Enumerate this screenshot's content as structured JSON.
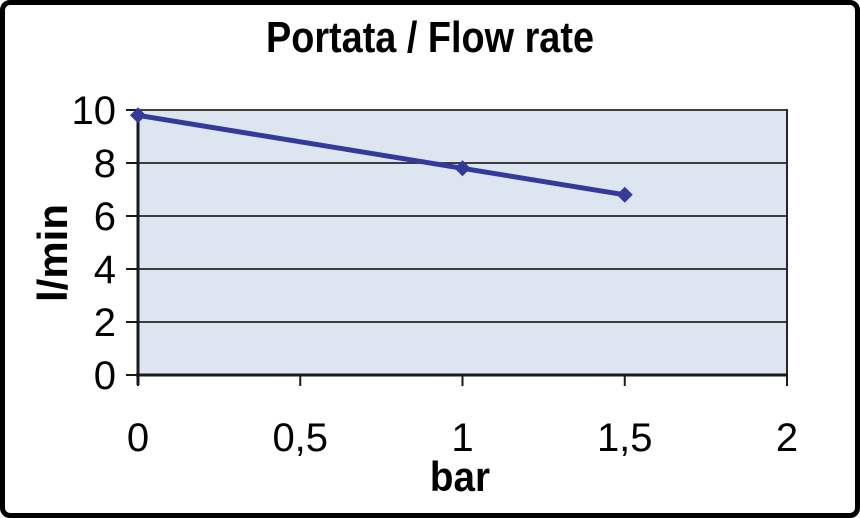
{
  "chart_data": {
    "type": "line",
    "title": "Portata / Flow rate",
    "xlabel": "bar",
    "ylabel": "l/min",
    "x": [
      0,
      1,
      1.5
    ],
    "y": [
      9.8,
      7.8,
      6.8
    ],
    "xlim": [
      0,
      2
    ],
    "ylim": [
      0,
      10
    ],
    "xtick_values": [
      0,
      0.5,
      1,
      1.5,
      2
    ],
    "xticks": [
      "0",
      "0,5",
      "1",
      "1,5",
      "2"
    ],
    "ytick_values": [
      0,
      2,
      4,
      6,
      8,
      10
    ],
    "yticks": [
      "0",
      "2",
      "4",
      "6",
      "8",
      "10"
    ],
    "grid": true,
    "legend": "none",
    "marker": "diamond",
    "colors": {
      "line": "#333a99",
      "marker": "#333a99",
      "plot_bg": "#dde5f0",
      "grid": "#262626",
      "axis": "#1a1a1a",
      "text": "#000000",
      "frame_border": "#000000",
      "background": "#ffffff"
    }
  }
}
